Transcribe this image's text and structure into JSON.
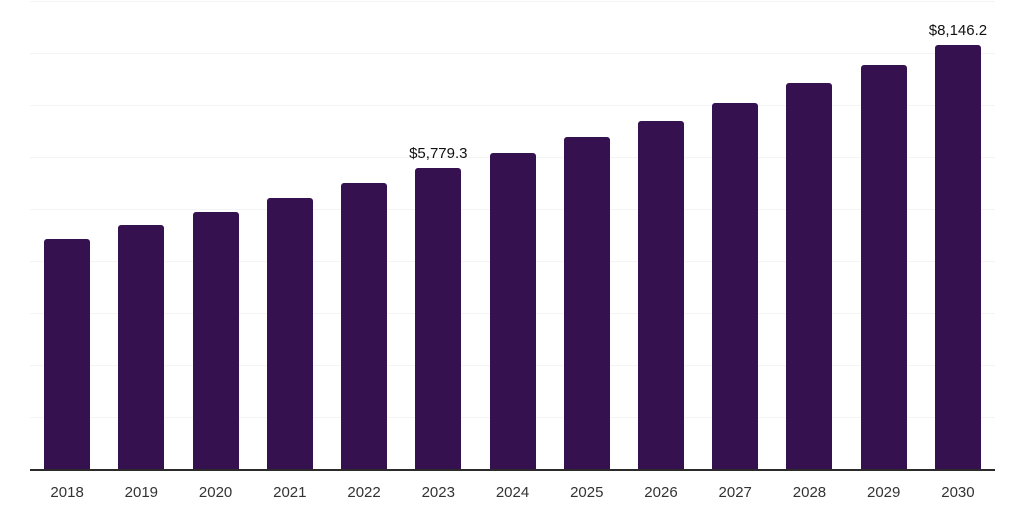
{
  "chart_data": {
    "type": "bar",
    "title": "",
    "xlabel": "",
    "ylabel": "",
    "categories": [
      "2018",
      "2019",
      "2020",
      "2021",
      "2022",
      "2023",
      "2024",
      "2025",
      "2026",
      "2027",
      "2028",
      "2029",
      "2030"
    ],
    "values": [
      4420,
      4690,
      4940,
      5210,
      5500,
      5779.3,
      6080,
      6390,
      6690,
      7040,
      7420,
      7770,
      8146.2
    ],
    "value_labels": {
      "2023": "$5,779.3",
      "2030": "$8,146.2"
    },
    "ylim": [
      0,
      9000
    ],
    "gridline_step": 1000,
    "grid": "horizontal",
    "y_tick_labels_visible": false,
    "legend": "none",
    "colors": {
      "bar": "#351150",
      "axis_line": "#2b2b2b",
      "gridline": "#f4f4f4",
      "x_tick_label": "#333333",
      "value_label": "#111111",
      "background": "#ffffff"
    }
  }
}
